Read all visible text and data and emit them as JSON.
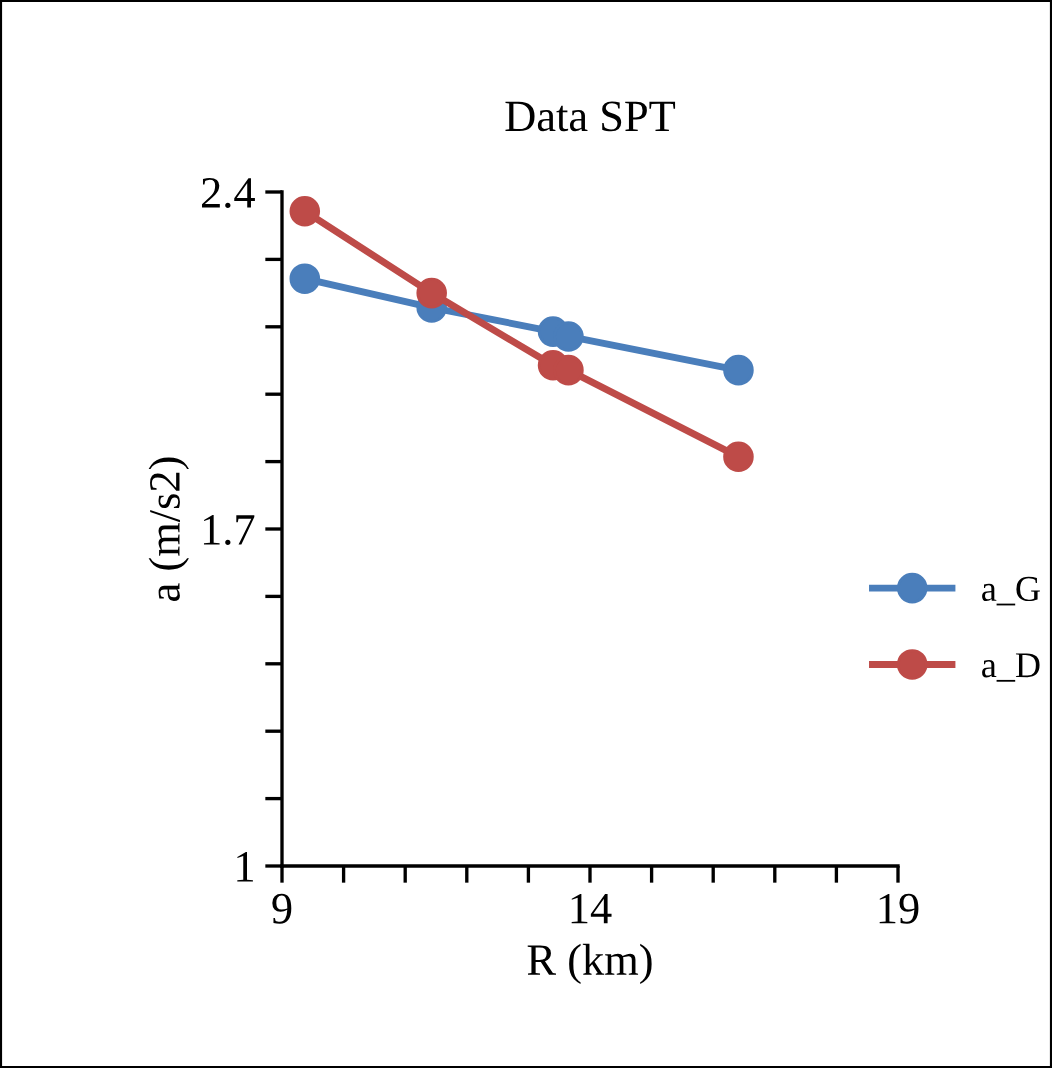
{
  "chart_data": {
    "type": "line",
    "title": "Data SPT",
    "xlabel": "R (km)",
    "ylabel": "a (m/s2)",
    "series": [
      {
        "name": "a_G",
        "color": "#4a7ebb",
        "x": [
          9.37,
          11.43,
          13.4,
          13.65,
          16.41
        ],
        "values": [
          2.22,
          2.16,
          2.11,
          2.1,
          2.03
        ]
      },
      {
        "name": "a_D",
        "color": "#be4b48",
        "x": [
          9.37,
          11.43,
          13.4,
          13.65,
          16.41
        ],
        "values": [
          2.36,
          2.19,
          2.04,
          2.03,
          1.85
        ]
      }
    ],
    "xlim": [
      9,
      19
    ],
    "ylim": [
      1,
      2.4
    ],
    "xticks": [
      9,
      {
        "value": 10,
        "label": null
      },
      {
        "value": 11,
        "label": null
      },
      {
        "value": 12,
        "label": null
      },
      {
        "value": 13,
        "label": null
      },
      14,
      {
        "value": 15,
        "label": null
      },
      {
        "value": 16,
        "label": null
      },
      {
        "value": 17,
        "label": null
      },
      {
        "value": 18,
        "label": null
      },
      19
    ],
    "yticks": [
      1,
      {
        "value": 1.14,
        "label": null
      },
      {
        "value": 1.28,
        "label": null
      },
      {
        "value": 1.42,
        "label": null
      },
      {
        "value": 1.56,
        "label": null
      },
      1.7,
      {
        "value": 1.84,
        "label": null
      },
      {
        "value": 1.98,
        "label": null
      },
      {
        "value": 2.12,
        "label": null
      },
      {
        "value": 2.26,
        "label": null
      },
      2.4
    ],
    "grid": false,
    "legend": "right",
    "marker": "circle",
    "line_style": "solid"
  }
}
